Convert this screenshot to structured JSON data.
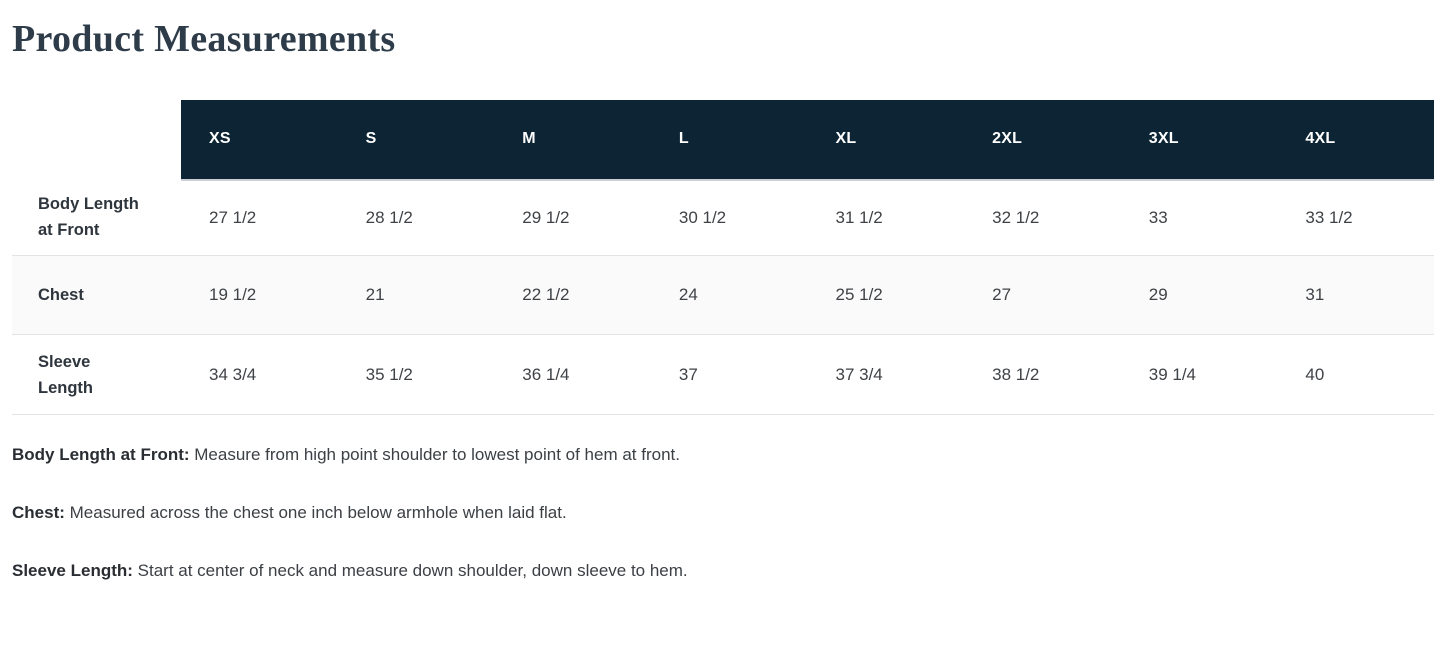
{
  "title": "Product Measurements",
  "colors": {
    "header_bg": "#0c2434",
    "header_text": "#ffffff",
    "title_color": "#2e3c4a",
    "stripe_bg": "#fafafa"
  },
  "table": {
    "columns": [
      "XS",
      "S",
      "M",
      "L",
      "XL",
      "2XL",
      "3XL",
      "4XL"
    ],
    "rows": [
      {
        "label": "Body Length at Front",
        "label_lines": [
          "Body Length",
          "at Front"
        ],
        "values": [
          "27 1/2",
          "28 1/2",
          "29 1/2",
          "30 1/2",
          "31 1/2",
          "32 1/2",
          "33",
          "33 1/2"
        ]
      },
      {
        "label": "Chest",
        "label_lines": [
          "Chest",
          ""
        ],
        "values": [
          "19 1/2",
          "21",
          "22 1/2",
          "24",
          "25 1/2",
          "27",
          "29",
          "31"
        ]
      },
      {
        "label": "Sleeve Length",
        "label_lines": [
          "Sleeve",
          "Length"
        ],
        "values": [
          "34 3/4",
          "35 1/2",
          "36 1/4",
          "37",
          "37 3/4",
          "38 1/2",
          "39 1/4",
          "40"
        ]
      }
    ]
  },
  "notes": [
    {
      "term": "Body Length at Front:",
      "text": "Measure from high point shoulder to lowest point of hem at front."
    },
    {
      "term": "Chest:",
      "text": "Measured across the chest one inch below armhole when laid flat."
    },
    {
      "term": "Sleeve Length:",
      "text": "Start at center of neck and measure down shoulder, down sleeve to hem."
    }
  ]
}
